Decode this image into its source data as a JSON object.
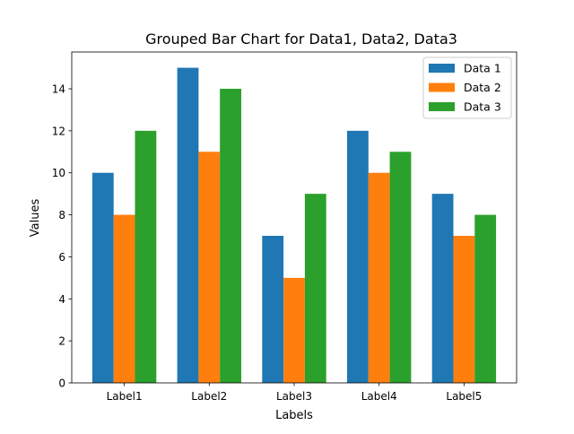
{
  "chart_data": {
    "type": "bar",
    "title": "Grouped Bar Chart for Data1, Data2, Data3",
    "xlabel": "Labels",
    "ylabel": "Values",
    "categories": [
      "Label1",
      "Label2",
      "Label3",
      "Label4",
      "Label5"
    ],
    "series": [
      {
        "name": "Data 1",
        "color": "#1f77b4",
        "values": [
          10,
          15,
          7,
          12,
          9
        ]
      },
      {
        "name": "Data 2",
        "color": "#ff7f0e",
        "values": [
          8,
          11,
          5,
          10,
          7
        ]
      },
      {
        "name": "Data 3",
        "color": "#2ca02c",
        "values": [
          12,
          14,
          9,
          11,
          8
        ]
      }
    ],
    "ylim": [
      0,
      15.75
    ],
    "yticks": [
      0,
      2,
      4,
      6,
      8,
      10,
      12,
      14
    ],
    "grid": false,
    "legend_position": "top-right"
  }
}
